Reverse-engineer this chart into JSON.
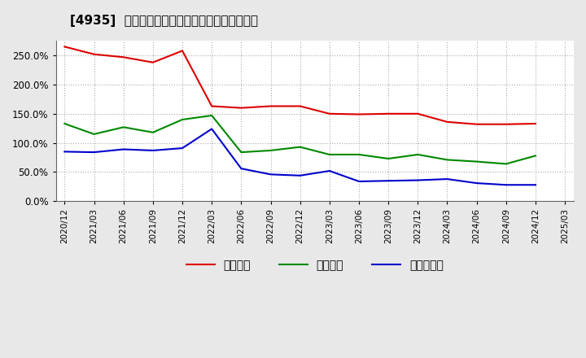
{
  "title": "[4935]  流動比率、当座比率、現預金比率の推移",
  "x_labels": [
    "2020/12",
    "2021/03",
    "2021/06",
    "2021/09",
    "2021/12",
    "2022/03",
    "2022/06",
    "2022/09",
    "2022/12",
    "2023/03",
    "2023/06",
    "2023/09",
    "2023/12",
    "2024/03",
    "2024/06",
    "2024/09",
    "2024/12",
    "2025/03"
  ],
  "ryudo": [
    265,
    252,
    247,
    238,
    258,
    163,
    160,
    163,
    163,
    150,
    149,
    150,
    150,
    136,
    132,
    132,
    133,
    null
  ],
  "toza": [
    133,
    115,
    127,
    118,
    140,
    147,
    84,
    87,
    93,
    80,
    80,
    73,
    80,
    71,
    68,
    64,
    78,
    null
  ],
  "genyo": [
    85,
    84,
    89,
    87,
    91,
    124,
    56,
    46,
    44,
    52,
    34,
    35,
    36,
    38,
    31,
    28,
    28,
    null
  ],
  "ryudo_color": "#dd0000",
  "toza_color": "#008800",
  "genyo_color": "#0000cc",
  "bg_color": "#e8e8e8",
  "plot_bg_color": "#ffffff",
  "grid_color": "#aaaaaa",
  "ylim": [
    0,
    275
  ],
  "yticks": [
    0,
    50,
    100,
    150,
    200,
    250
  ],
  "legend_label_ryudo": "流動比率",
  "legend_label_toza": "当座比率",
  "legend_label_genyo": "現預金比率"
}
